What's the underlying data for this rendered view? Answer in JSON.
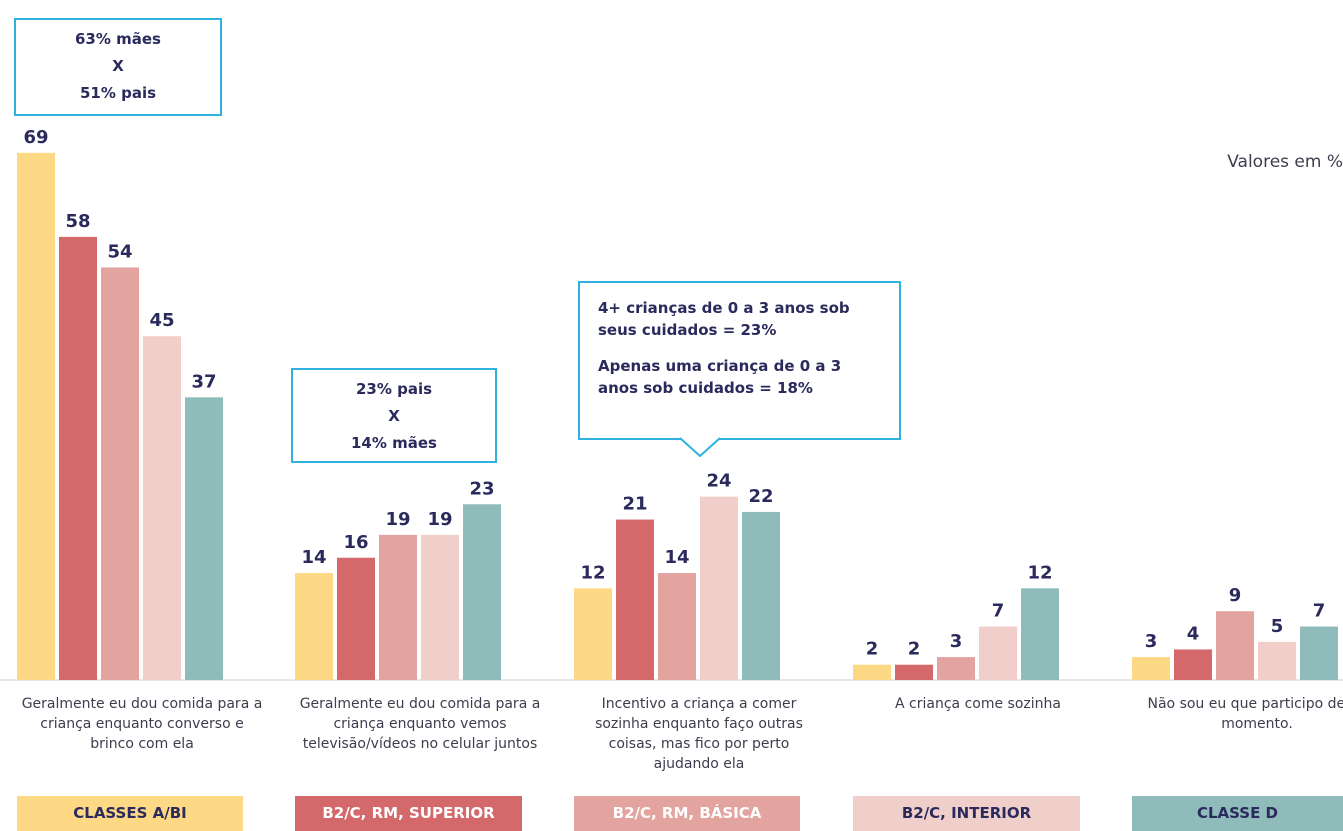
{
  "chart_data": {
    "type": "bar",
    "unit_note": "Valores em %",
    "categories": [
      "Geralmente eu dou comida para a criança enquanto converso e brinco com ela",
      "Geralmente eu dou comida para a criança enquanto vemos televisão/vídeos no celular juntos",
      "Incentivo a criança a comer sozinha enquanto faço outras coisas, mas fico por perto ajudando ela",
      "A criança come sozinha",
      "Não sou eu que participo deste momento."
    ],
    "series": [
      {
        "name": "CLASSES A/BI",
        "color": "#fdd985",
        "values": [
          69,
          14,
          12,
          2,
          3
        ]
      },
      {
        "name": "B2/C, RM, SUPERIOR",
        "color": "#d4696b",
        "values": [
          58,
          16,
          21,
          2,
          4
        ]
      },
      {
        "name": "B2/C, RM, BÁSICA",
        "color": "#e3a4a0",
        "values": [
          54,
          19,
          14,
          3,
          9
        ]
      },
      {
        "name": "B2/C, INTERIOR",
        "color": "#f0cfca",
        "values": [
          45,
          19,
          24,
          7,
          5
        ]
      },
      {
        "name": "CLASSE D",
        "color": "#8fbbbb",
        "values": [
          37,
          23,
          22,
          12,
          7
        ]
      }
    ],
    "annotations": [
      {
        "lines": [
          "63% mães",
          "X",
          "51% pais"
        ]
      },
      {
        "lines": [
          "23% pais",
          "X",
          "14% mães"
        ]
      },
      {
        "lines": [
          "4+ crianças de 0 a 3 anos sob seus cuidados = 23%",
          "Apenas uma criança de 0 a 3 anos sob cuidados = 18%"
        ]
      }
    ]
  }
}
